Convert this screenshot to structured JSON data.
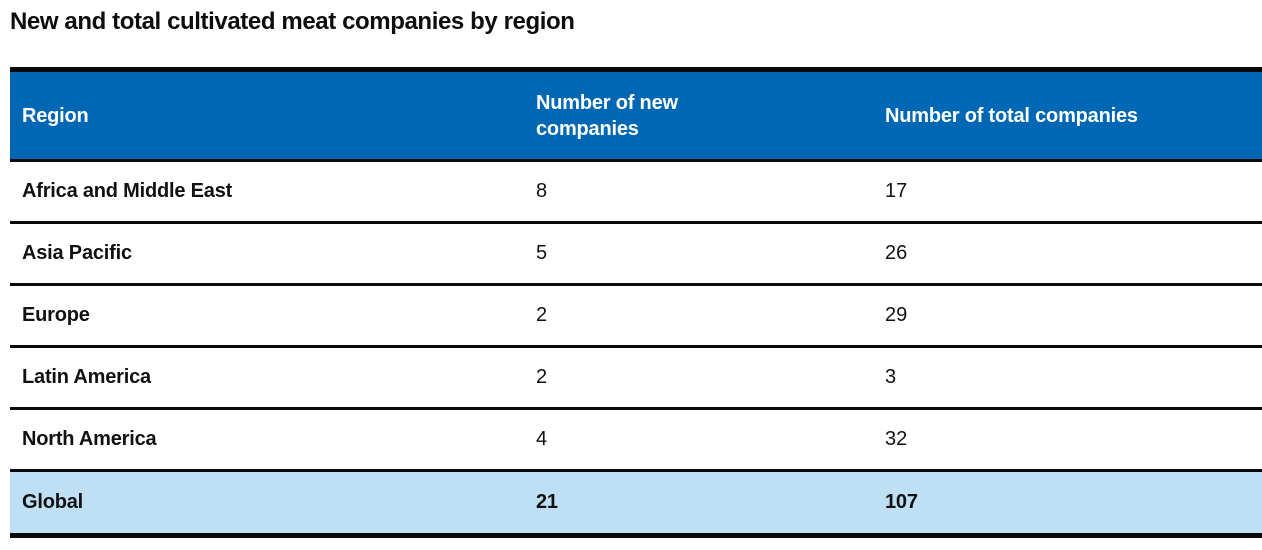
{
  "page": {
    "title": "New and total cultivated meat companies by region"
  },
  "table": {
    "headers": {
      "region": "Region",
      "new_companies": "Number of new companies",
      "total_companies": "Number of total companies"
    },
    "rows": [
      {
        "region": "Africa and Middle East",
        "new_companies": "8",
        "total_companies": "17"
      },
      {
        "region": "Asia Pacific",
        "new_companies": "5",
        "total_companies": "26"
      },
      {
        "region": "Europe",
        "new_companies": "2",
        "total_companies": "29"
      },
      {
        "region": "Latin America",
        "new_companies": "2",
        "total_companies": "3"
      },
      {
        "region": "North America",
        "new_companies": "4",
        "total_companies": "32"
      }
    ],
    "summary_row": {
      "region": "Global",
      "new_companies": "21",
      "total_companies": "107"
    }
  },
  "colors": {
    "header_bg": "#0067b5",
    "header_text": "#ffffff",
    "summary_bg": "#bfe0f4",
    "border": "#0a0a0a"
  },
  "chart_data": {
    "type": "table",
    "title": "New and total cultivated meat companies by region",
    "columns": [
      "Region",
      "Number of new companies",
      "Number of total companies"
    ],
    "rows": [
      [
        "Africa and Middle East",
        8,
        17
      ],
      [
        "Asia Pacific",
        5,
        26
      ],
      [
        "Europe",
        2,
        29
      ],
      [
        "Latin America",
        2,
        3
      ],
      [
        "North America",
        4,
        32
      ],
      [
        "Global",
        21,
        107
      ]
    ]
  }
}
